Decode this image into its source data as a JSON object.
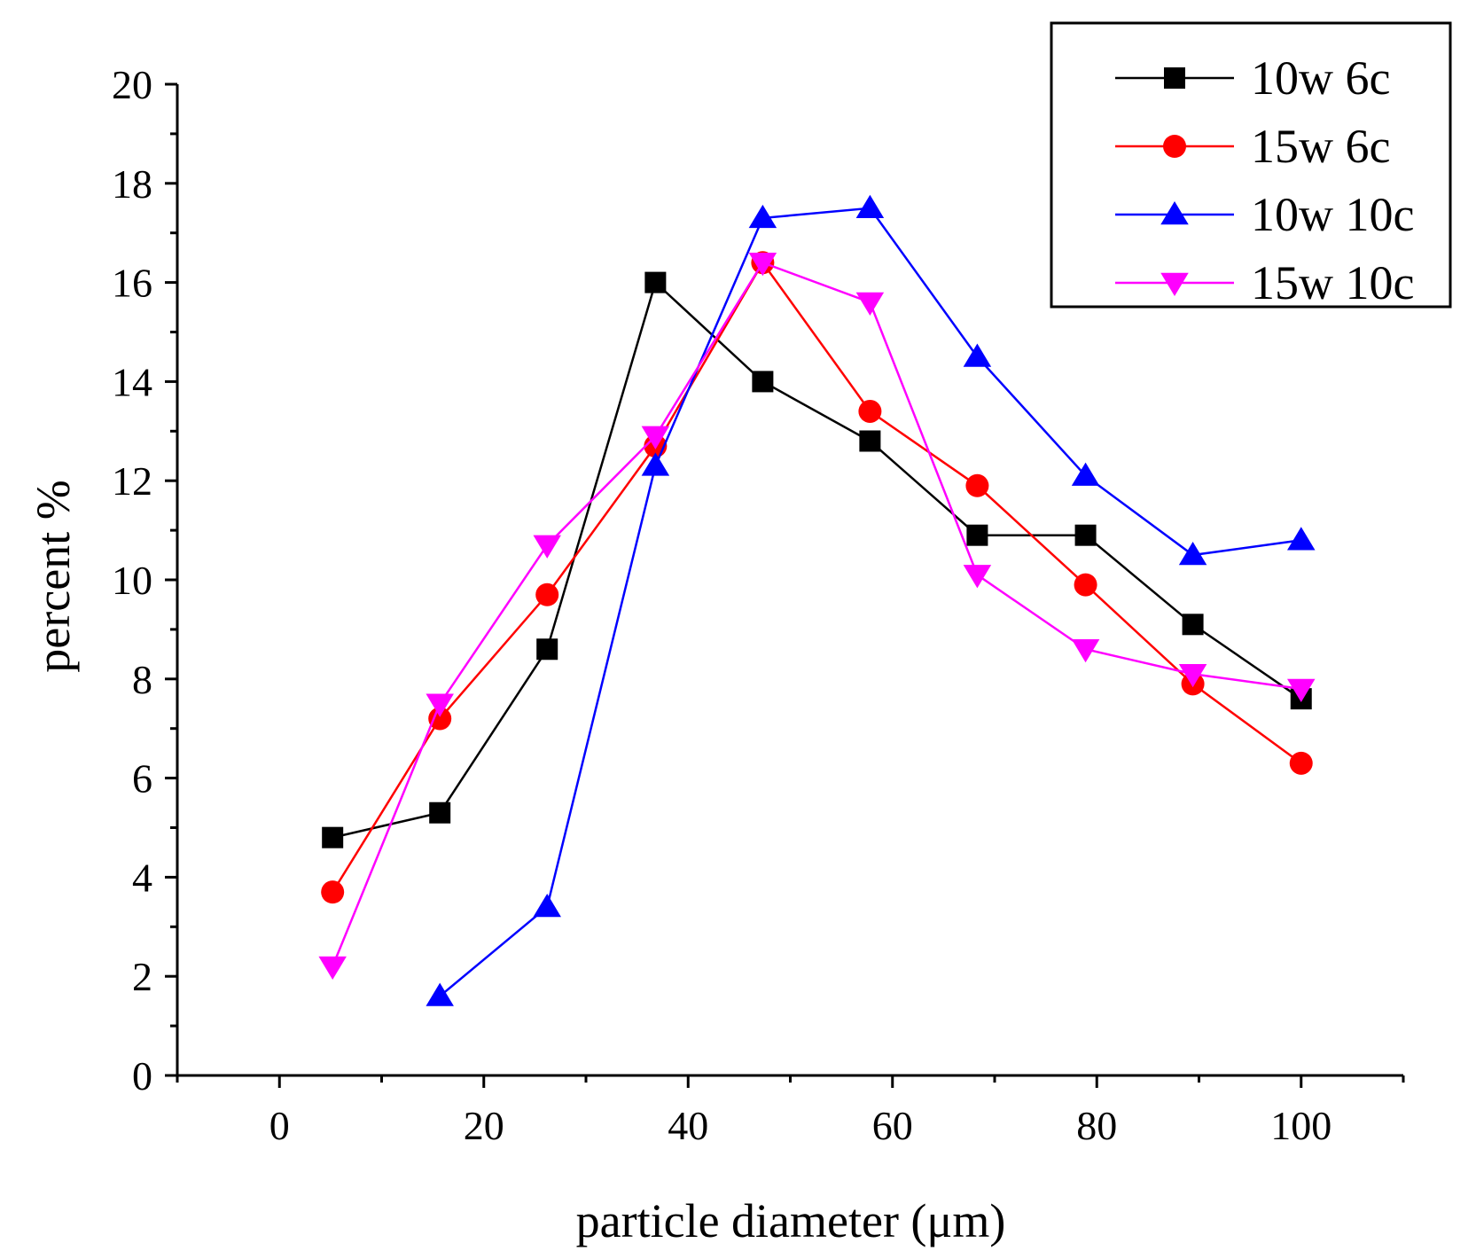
{
  "chart_data": {
    "type": "line",
    "title": "",
    "xlabel": "particle diameter (μm)",
    "ylabel": "percent %",
    "xlim": [
      -10,
      110
    ],
    "ylim": [
      0,
      20
    ],
    "x_ticks": [
      0,
      20,
      40,
      60,
      80,
      100
    ],
    "x_tick_labels": [
      "0",
      "20",
      "40",
      "60",
      "80",
      "100"
    ],
    "y_ticks": [
      0,
      2,
      4,
      6,
      8,
      10,
      12,
      14,
      16,
      18,
      20
    ],
    "y_tick_labels": [
      "0",
      "2",
      "4",
      "6",
      "8",
      "10",
      "12",
      "14",
      "16",
      "18",
      "20"
    ],
    "grid": false,
    "legend_position": "top-right",
    "series": [
      {
        "name": "10w 6c",
        "color": "#000000",
        "marker": "square",
        "x": [
          5.2,
          15.7,
          26.2,
          36.8,
          47.3,
          57.8,
          68.3,
          78.9,
          89.4,
          100
        ],
        "y": [
          4.8,
          5.3,
          8.6,
          16.0,
          14.0,
          12.8,
          10.9,
          10.9,
          9.1,
          7.6
        ]
      },
      {
        "name": "15w 6c",
        "color": "#ff0000",
        "marker": "circle",
        "x": [
          5.2,
          15.7,
          26.2,
          36.8,
          47.3,
          57.8,
          68.3,
          78.9,
          89.4,
          100
        ],
        "y": [
          3.7,
          7.2,
          9.7,
          12.7,
          16.4,
          13.4,
          11.9,
          9.9,
          7.9,
          6.3
        ]
      },
      {
        "name": "10w 10c",
        "color": "#0000ff",
        "marker": "triangle-up",
        "x": [
          15.7,
          26.2,
          36.8,
          47.3,
          57.8,
          68.3,
          78.9,
          89.4,
          100
        ],
        "y": [
          1.6,
          3.4,
          12.3,
          17.3,
          17.5,
          14.5,
          12.1,
          10.5,
          10.8
        ]
      },
      {
        "name": "15w 10c",
        "color": "#ff00ff",
        "marker": "triangle-down",
        "x": [
          5.2,
          15.7,
          26.2,
          36.8,
          47.3,
          57.8,
          68.3,
          78.9,
          89.4,
          100
        ],
        "y": [
          2.2,
          7.5,
          10.7,
          12.9,
          16.4,
          15.6,
          10.1,
          8.6,
          8.1,
          7.8
        ]
      }
    ]
  }
}
